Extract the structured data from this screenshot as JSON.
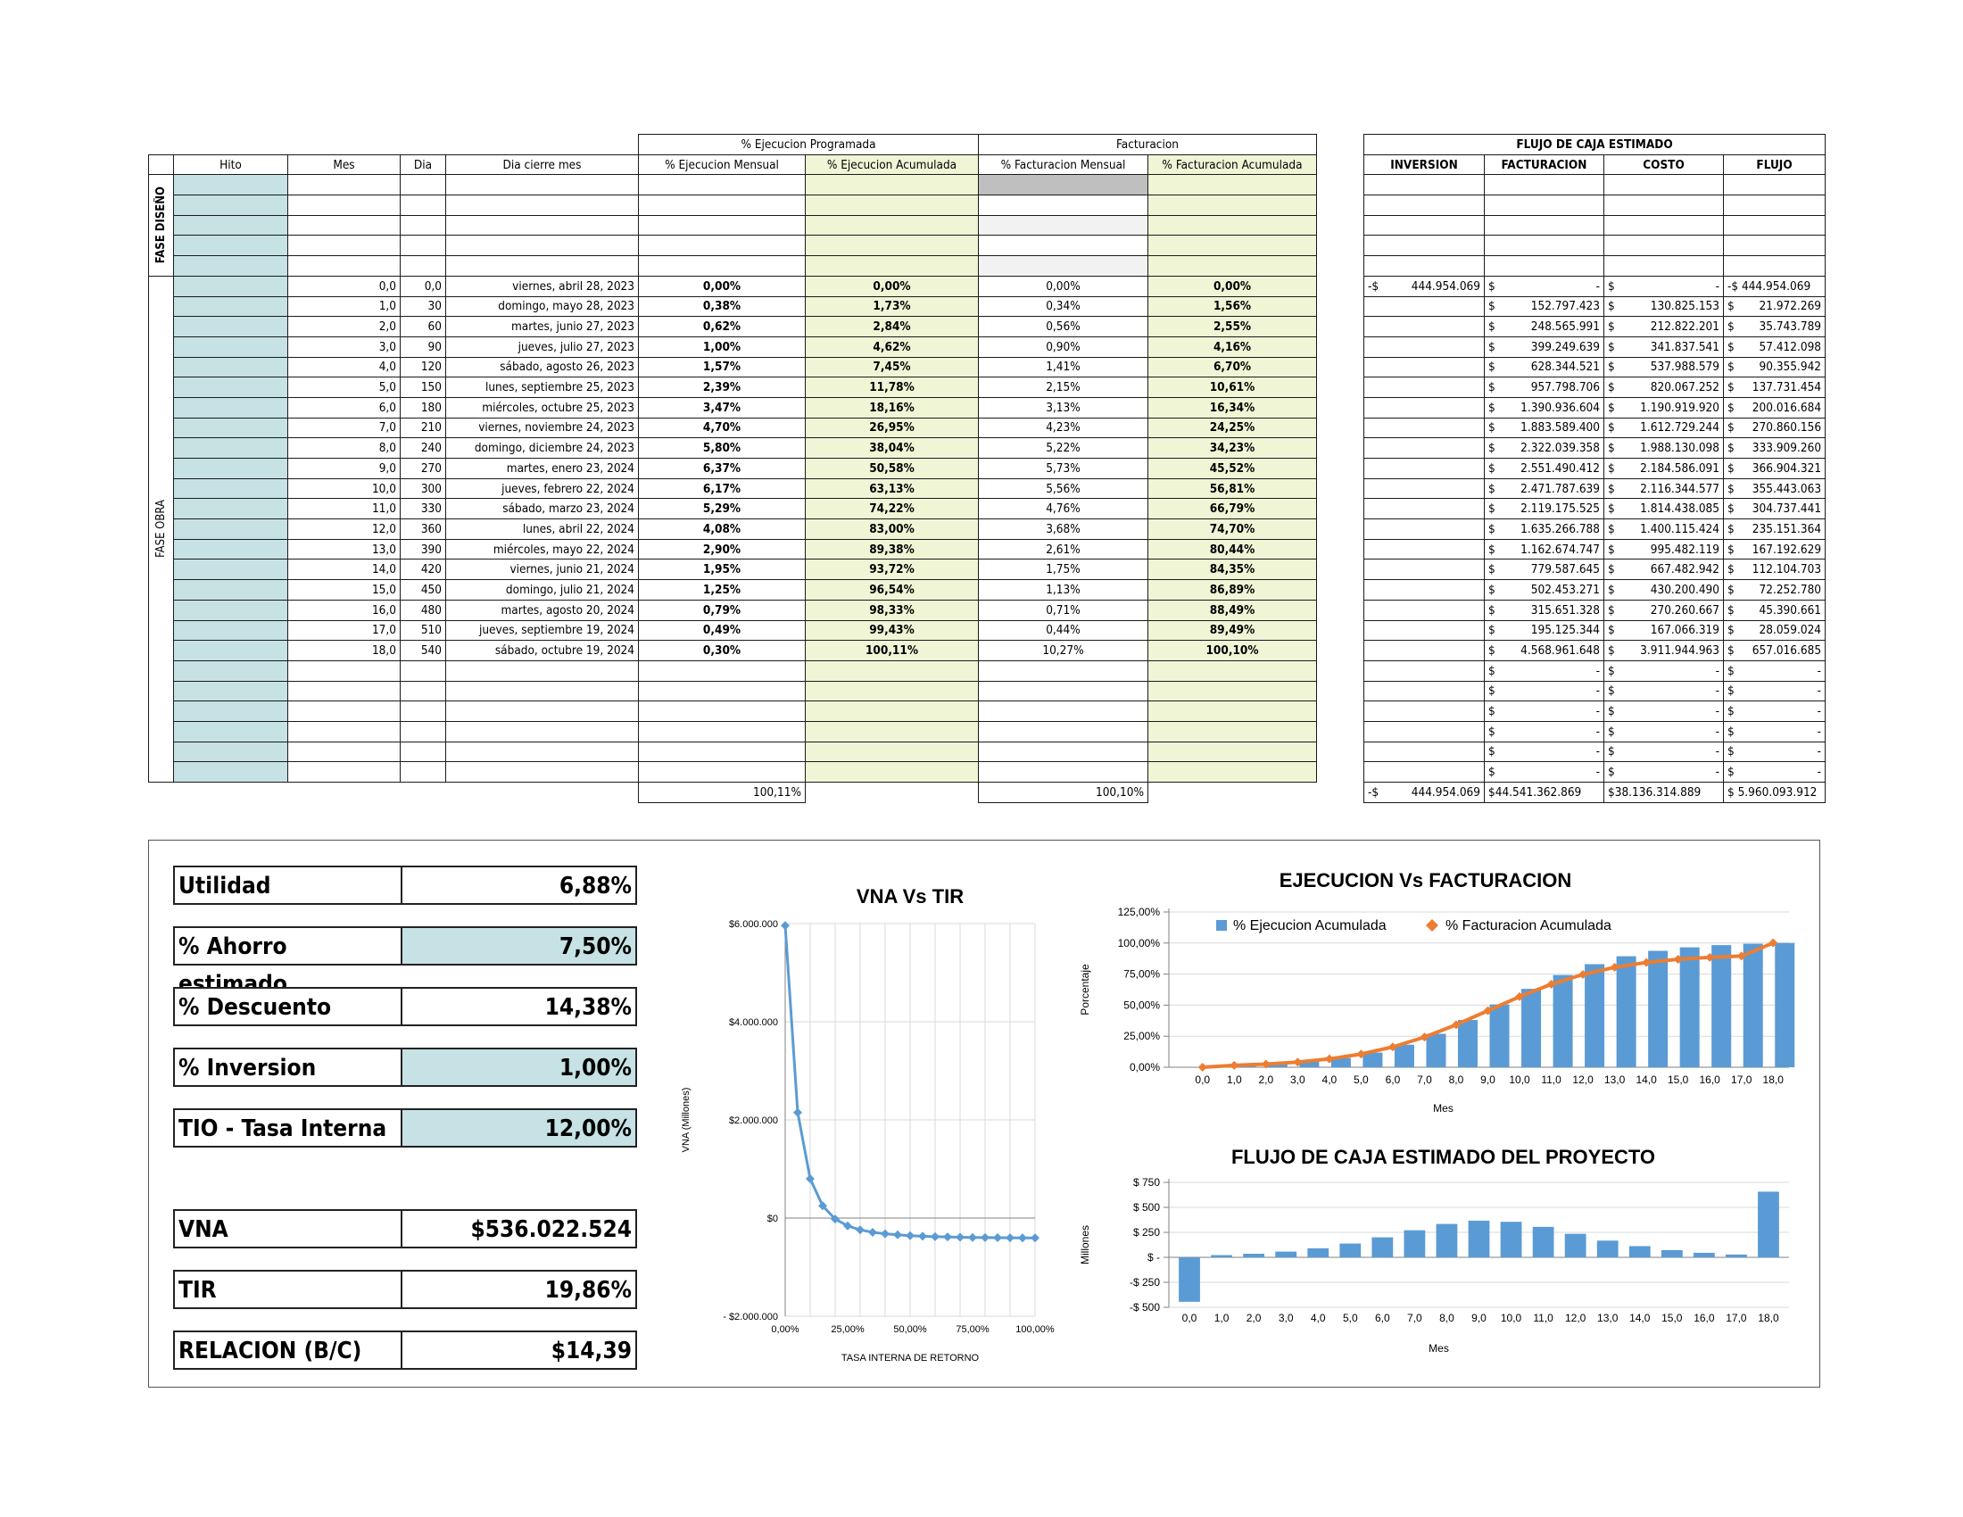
{
  "table": {
    "group_headers": {
      "ejecucion": "% Ejecucion Programada",
      "facturacion": "Facturacion"
    },
    "col_headers": [
      "Hito",
      "Mes",
      "Dia",
      "Dia cierre mes",
      "% Ejecucion Mensual",
      "% Ejecucion Acumulada",
      "% Facturacion Mensual",
      "% Facturacion Acumulada"
    ],
    "phase_labels": {
      "design": "FASE DISEÑO",
      "work": "FASE OBRA"
    },
    "rows": [
      [
        "0,0",
        "0,0",
        "viernes, abril 28, 2023",
        "0,00%",
        "0,00%",
        "0,00%",
        "0,00%"
      ],
      [
        "1,0",
        "30",
        "domingo, mayo 28, 2023",
        "0,38%",
        "1,73%",
        "0,34%",
        "1,56%"
      ],
      [
        "2,0",
        "60",
        "martes, junio 27, 2023",
        "0,62%",
        "2,84%",
        "0,56%",
        "2,55%"
      ],
      [
        "3,0",
        "90",
        "jueves, julio 27, 2023",
        "1,00%",
        "4,62%",
        "0,90%",
        "4,16%"
      ],
      [
        "4,0",
        "120",
        "sábado, agosto 26, 2023",
        "1,57%",
        "7,45%",
        "1,41%",
        "6,70%"
      ],
      [
        "5,0",
        "150",
        "lunes, septiembre 25, 2023",
        "2,39%",
        "11,78%",
        "2,15%",
        "10,61%"
      ],
      [
        "6,0",
        "180",
        "miércoles, octubre 25, 2023",
        "3,47%",
        "18,16%",
        "3,13%",
        "16,34%"
      ],
      [
        "7,0",
        "210",
        "viernes, noviembre 24, 2023",
        "4,70%",
        "26,95%",
        "4,23%",
        "24,25%"
      ],
      [
        "8,0",
        "240",
        "domingo, diciembre 24, 2023",
        "5,80%",
        "38,04%",
        "5,22%",
        "34,23%"
      ],
      [
        "9,0",
        "270",
        "martes, enero 23, 2024",
        "6,37%",
        "50,58%",
        "5,73%",
        "45,52%"
      ],
      [
        "10,0",
        "300",
        "jueves, febrero 22, 2024",
        "6,17%",
        "63,13%",
        "5,56%",
        "56,81%"
      ],
      [
        "11,0",
        "330",
        "sábado, marzo 23, 2024",
        "5,29%",
        "74,22%",
        "4,76%",
        "66,79%"
      ],
      [
        "12,0",
        "360",
        "lunes, abril 22, 2024",
        "4,08%",
        "83,00%",
        "3,68%",
        "74,70%"
      ],
      [
        "13,0",
        "390",
        "miércoles, mayo 22, 2024",
        "2,90%",
        "89,38%",
        "2,61%",
        "80,44%"
      ],
      [
        "14,0",
        "420",
        "viernes, junio 21, 2024",
        "1,95%",
        "93,72%",
        "1,75%",
        "84,35%"
      ],
      [
        "15,0",
        "450",
        "domingo, julio 21, 2024",
        "1,25%",
        "96,54%",
        "1,13%",
        "86,89%"
      ],
      [
        "16,0",
        "480",
        "martes, agosto 20, 2024",
        "0,79%",
        "98,33%",
        "0,71%",
        "88,49%"
      ],
      [
        "17,0",
        "510",
        "jueves, septiembre 19, 2024",
        "0,49%",
        "99,43%",
        "0,44%",
        "89,49%"
      ],
      [
        "18,0",
        "540",
        "sábado, octubre 19, 2024",
        "0,30%",
        "100,11%",
        "10,27%",
        "100,10%"
      ]
    ],
    "totals": {
      "ejecucion": "100,11%",
      "facturacion": "100,10%"
    }
  },
  "flujo": {
    "title": "FLUJO DE CAJA ESTIMADO",
    "headers": [
      "INVERSION",
      "FACTURACION",
      "COSTO",
      "FLUJO"
    ],
    "first_inv": [
      "-$",
      "444.954.069"
    ],
    "rows": [
      [
        "-",
        "-",
        "-$ 444.954.069"
      ],
      [
        "152.797.423",
        "130.825.153",
        "21.972.269"
      ],
      [
        "248.565.991",
        "212.822.201",
        "35.743.789"
      ],
      [
        "399.249.639",
        "341.837.541",
        "57.412.098"
      ],
      [
        "628.344.521",
        "537.988.579",
        "90.355.942"
      ],
      [
        "957.798.706",
        "820.067.252",
        "137.731.454"
      ],
      [
        "1.390.936.604",
        "1.190.919.920",
        "200.016.684"
      ],
      [
        "1.883.589.400",
        "1.612.729.244",
        "270.860.156"
      ],
      [
        "2.322.039.358",
        "1.988.130.098",
        "333.909.260"
      ],
      [
        "2.551.490.412",
        "2.184.586.091",
        "366.904.321"
      ],
      [
        "2.471.787.639",
        "2.116.344.577",
        "355.443.063"
      ],
      [
        "2.119.175.525",
        "1.814.438.085",
        "304.737.441"
      ],
      [
        "1.635.266.788",
        "1.400.115.424",
        "235.151.364"
      ],
      [
        "1.162.674.747",
        "995.482.119",
        "167.192.629"
      ],
      [
        "779.587.645",
        "667.482.942",
        "112.104.703"
      ],
      [
        "502.453.271",
        "430.200.490",
        "72.252.780"
      ],
      [
        "315.651.328",
        "270.260.667",
        "45.390.661"
      ],
      [
        "195.125.344",
        "167.066.319",
        "28.059.024"
      ],
      [
        "4.568.961.648",
        "3.911.944.963",
        "657.016.685"
      ]
    ],
    "empty_rows": 6,
    "totals": [
      "-$",
      "444.954.069",
      "$44.541.362.869",
      "$38.136.314.889",
      "$ 5.960.093.912"
    ]
  },
  "kpis": [
    {
      "label": "Utilidad",
      "value": "6,88%",
      "input": false
    },
    {
      "label": "% Ahorro estimado",
      "value": "7,50%",
      "input": true
    },
    {
      "label": "% Descuento",
      "value": "14,38%",
      "input": false
    },
    {
      "label": "% Inversion",
      "value": "1,00%",
      "input": true
    },
    {
      "label": "TIO - Tasa Interna",
      "value": "12,00%",
      "input": true
    },
    {
      "label": "VNA",
      "value": "$536.022.524",
      "input": false
    },
    {
      "label": "TIR",
      "value": "19,86%",
      "input": false
    },
    {
      "label": "RELACION (B/C)",
      "value": "$14,39",
      "input": false
    }
  ],
  "colors": {
    "blue_input": "#c6e2e4",
    "green_col": "#f0f5d6",
    "bar_blue": "#5b9bd5",
    "line_orange": "#ed7d31"
  },
  "chart_data": [
    {
      "type": "line",
      "title": "VNA Vs TIR",
      "xlabel": "TASA INTERNA DE RETORNO",
      "ylabel": "VNA (Millones)",
      "x_ticks": [
        "0,00%",
        "25,00%",
        "50,00%",
        "75,00%",
        "100,00%"
      ],
      "y_ticks": [
        "- $2.000.000",
        "$0",
        "$2.000.000",
        "$4.000.000",
        "$6.000.000"
      ],
      "xlim": [
        0,
        100
      ],
      "ylim": [
        -2000000,
        6000000
      ],
      "x": [
        0,
        5,
        10,
        15,
        20,
        25,
        30,
        35,
        40,
        45,
        50,
        55,
        60,
        65,
        70,
        75,
        80,
        85,
        90,
        95,
        100
      ],
      "y": [
        5960000,
        2150000,
        800000,
        250000,
        -20000,
        -160000,
        -240000,
        -290000,
        -320000,
        -340000,
        -360000,
        -370000,
        -380000,
        -385000,
        -390000,
        -395000,
        -398000,
        -400000,
        -402000,
        -404000,
        -405000
      ]
    },
    {
      "type": "bar",
      "title": "EJECUCION Vs FACTURACION",
      "xlabel": "Mes",
      "ylabel": "Porcentaje",
      "categories": [
        "0,0",
        "1,0",
        "2,0",
        "3,0",
        "4,0",
        "5,0",
        "6,0",
        "7,0",
        "8,0",
        "9,0",
        "10,0",
        "11,0",
        "12,0",
        "13,0",
        "14,0",
        "15,0",
        "16,0",
        "17,0",
        "18,0"
      ],
      "y_ticks": [
        "0,00%",
        "25,00%",
        "50,00%",
        "75,00%",
        "100,00%",
        "125,00%"
      ],
      "ylim": [
        0,
        125
      ],
      "legend_position": "top",
      "series": [
        {
          "name": "% Ejecucion Acumulada",
          "kind": "bar",
          "values": [
            0,
            1.73,
            2.84,
            4.62,
            7.45,
            11.78,
            18.16,
            26.95,
            38.04,
            50.58,
            63.13,
            74.22,
            83.0,
            89.38,
            93.72,
            96.54,
            98.33,
            99.43,
            100.11
          ]
        },
        {
          "name": "% Facturacion Acumulada",
          "kind": "line",
          "values": [
            0,
            1.56,
            2.55,
            4.16,
            6.7,
            10.61,
            16.34,
            24.25,
            34.23,
            45.52,
            56.81,
            66.79,
            74.7,
            80.44,
            84.35,
            86.89,
            88.49,
            89.49,
            100.1
          ]
        }
      ]
    },
    {
      "type": "bar",
      "title": "FLUJO DE CAJA ESTIMADO DEL PROYECTO",
      "xlabel": "Mes",
      "ylabel": "Millones",
      "categories": [
        "0,0",
        "1,0",
        "2,0",
        "3,0",
        "4,0",
        "5,0",
        "6,0",
        "7,0",
        "8,0",
        "9,0",
        "10,0",
        "11,0",
        "12,0",
        "13,0",
        "14,0",
        "15,0",
        "16,0",
        "17,0",
        "18,0"
      ],
      "y_ticks": [
        "-$ 500",
        "-$ 250",
        "$ -",
        "$ 250",
        "$ 500",
        "$ 750"
      ],
      "ylim": [
        -500,
        750
      ],
      "values": [
        -444.95,
        21.97,
        35.74,
        57.41,
        90.36,
        137.73,
        200.02,
        270.86,
        333.91,
        366.9,
        355.44,
        304.74,
        235.15,
        167.19,
        112.1,
        72.25,
        45.39,
        28.06,
        657.02
      ]
    }
  ]
}
